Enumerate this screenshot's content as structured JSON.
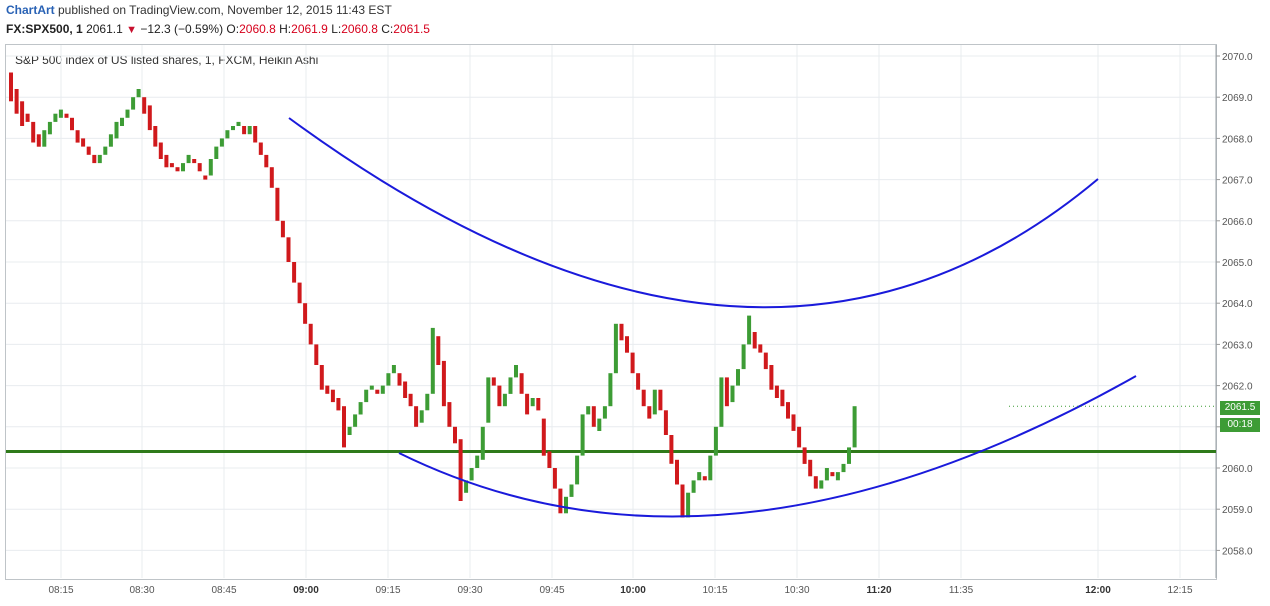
{
  "header": {
    "brand": "ChartArt",
    "published": " published on TradingView.com, November 12, 2015 11:43 EST",
    "symbol": "FX:SPX500, 1",
    "last": "2061.1",
    "change": "−12.3 (−0.59%)",
    "o_label": "O:",
    "o_value": "2060.8",
    "h_label": "H:",
    "h_value": "2061.9",
    "l_label": "L:",
    "l_value": "2060.8",
    "c_label": "C:",
    "c_value": "2061.5"
  },
  "legend_title": "S&P 500 index of US listed shares, 1, FXCM, Heikin Ashi",
  "price_badge": "2061.5",
  "time_badge": "00:18",
  "colors": {
    "up": "#3d9c35",
    "down": "#d0191c",
    "arc": "#1a1adb",
    "support": "#2f7a1a",
    "grid": "#e8ecef"
  },
  "chart_data": {
    "type": "candlestick",
    "style": "Heikin Ashi",
    "y_ticks": [
      "2070.0",
      "2069.0",
      "2068.0",
      "2067.0",
      "2066.0",
      "2065.0",
      "2064.0",
      "2063.0",
      "2062.0",
      "2061.0",
      "2060.0",
      "2059.0",
      "2058.0"
    ],
    "y_range": [
      2057.6,
      2070.3
    ],
    "x_ticks": [
      {
        "label": "08:15",
        "bold": false
      },
      {
        "label": "08:30",
        "bold": false
      },
      {
        "label": "08:45",
        "bold": false
      },
      {
        "label": "09:00",
        "bold": true
      },
      {
        "label": "09:15",
        "bold": false
      },
      {
        "label": "09:30",
        "bold": false
      },
      {
        "label": "09:45",
        "bold": false
      },
      {
        "label": "10:00",
        "bold": true
      },
      {
        "label": "10:15",
        "bold": false
      },
      {
        "label": "10:30",
        "bold": false
      },
      {
        "label": "11:20",
        "bold": true
      },
      {
        "label": "11:35",
        "bold": false
      },
      {
        "label": "12:00",
        "bold": true
      },
      {
        "label": "12:15",
        "bold": false
      }
    ],
    "support_level": 2060.4,
    "candles": [
      [
        2069.6,
        2068.9
      ],
      [
        2069.2,
        2068.6
      ],
      [
        2068.9,
        2068.3
      ],
      [
        2068.6,
        2068.4
      ],
      [
        2068.4,
        2067.9
      ],
      [
        2068.1,
        2067.8
      ],
      [
        2067.8,
        2068.2
      ],
      [
        2068.1,
        2068.4
      ],
      [
        2068.4,
        2068.6
      ],
      [
        2068.5,
        2068.7
      ],
      [
        2068.6,
        2068.5
      ],
      [
        2068.5,
        2068.2
      ],
      [
        2068.2,
        2067.9
      ],
      [
        2068.0,
        2067.8
      ],
      [
        2067.8,
        2067.6
      ],
      [
        2067.6,
        2067.4
      ],
      [
        2067.4,
        2067.6
      ],
      [
        2067.6,
        2067.8
      ],
      [
        2067.8,
        2068.1
      ],
      [
        2068.0,
        2068.4
      ],
      [
        2068.3,
        2068.5
      ],
      [
        2068.5,
        2068.7
      ],
      [
        2068.7,
        2069.0
      ],
      [
        2069.0,
        2069.2
      ],
      [
        2069.0,
        2068.6
      ],
      [
        2068.8,
        2068.2
      ],
      [
        2068.3,
        2067.8
      ],
      [
        2067.9,
        2067.5
      ],
      [
        2067.6,
        2067.3
      ],
      [
        2067.4,
        2067.3
      ],
      [
        2067.3,
        2067.2
      ],
      [
        2067.2,
        2067.4
      ],
      [
        2067.4,
        2067.6
      ],
      [
        2067.5,
        2067.4
      ],
      [
        2067.4,
        2067.2
      ],
      [
        2067.1,
        2067.0
      ],
      [
        2067.1,
        2067.5
      ],
      [
        2067.5,
        2067.8
      ],
      [
        2067.8,
        2068.0
      ],
      [
        2068.0,
        2068.2
      ],
      [
        2068.2,
        2068.3
      ],
      [
        2068.3,
        2068.4
      ],
      [
        2068.3,
        2068.1
      ],
      [
        2068.1,
        2068.3
      ],
      [
        2068.3,
        2067.9
      ],
      [
        2067.9,
        2067.6
      ],
      [
        2067.6,
        2067.3
      ],
      [
        2067.3,
        2066.8
      ],
      [
        2066.8,
        2066.0
      ],
      [
        2066.0,
        2065.6
      ],
      [
        2065.6,
        2065.0
      ],
      [
        2065.0,
        2064.5
      ],
      [
        2064.5,
        2064.0
      ],
      [
        2064.0,
        2063.5
      ],
      [
        2063.5,
        2063.0
      ],
      [
        2063.0,
        2062.5
      ],
      [
        2062.5,
        2061.9
      ],
      [
        2062.0,
        2061.8
      ],
      [
        2061.9,
        2061.6
      ],
      [
        2061.7,
        2061.4
      ],
      [
        2061.5,
        2060.5
      ],
      [
        2060.8,
        2061.0
      ],
      [
        2061.0,
        2061.3
      ],
      [
        2061.3,
        2061.6
      ],
      [
        2061.6,
        2061.9
      ],
      [
        2061.9,
        2062.0
      ],
      [
        2061.9,
        2061.8
      ],
      [
        2061.8,
        2062.0
      ],
      [
        2062.0,
        2062.3
      ],
      [
        2062.3,
        2062.5
      ],
      [
        2062.3,
        2062.0
      ],
      [
        2062.1,
        2061.7
      ],
      [
        2061.8,
        2061.5
      ],
      [
        2061.5,
        2061.0
      ],
      [
        2061.1,
        2061.4
      ],
      [
        2061.4,
        2061.8
      ],
      [
        2061.8,
        2063.4
      ],
      [
        2063.2,
        2062.5
      ],
      [
        2062.6,
        2061.5
      ],
      [
        2061.6,
        2061.0
      ],
      [
        2061.0,
        2060.6
      ],
      [
        2060.7,
        2059.2
      ],
      [
        2059.4,
        2059.7
      ],
      [
        2059.7,
        2060.0
      ],
      [
        2060.0,
        2060.3
      ],
      [
        2060.2,
        2061.0
      ],
      [
        2061.1,
        2062.2
      ],
      [
        2062.2,
        2062.0
      ],
      [
        2062.0,
        2061.5
      ],
      [
        2061.5,
        2061.8
      ],
      [
        2061.8,
        2062.2
      ],
      [
        2062.2,
        2062.5
      ],
      [
        2062.3,
        2061.8
      ],
      [
        2061.8,
        2061.3
      ],
      [
        2061.5,
        2061.7
      ],
      [
        2061.7,
        2061.4
      ],
      [
        2061.2,
        2060.3
      ],
      [
        2060.4,
        2060.0
      ],
      [
        2060.0,
        2059.5
      ],
      [
        2059.5,
        2058.9
      ],
      [
        2058.9,
        2059.3
      ],
      [
        2059.3,
        2059.6
      ],
      [
        2059.6,
        2060.3
      ],
      [
        2060.3,
        2061.3
      ],
      [
        2061.3,
        2061.5
      ],
      [
        2061.5,
        2061.0
      ],
      [
        2060.9,
        2061.2
      ],
      [
        2061.2,
        2061.5
      ],
      [
        2061.5,
        2062.3
      ],
      [
        2062.3,
        2063.5
      ],
      [
        2063.5,
        2063.1
      ],
      [
        2063.2,
        2062.8
      ],
      [
        2062.8,
        2062.3
      ],
      [
        2062.3,
        2061.9
      ],
      [
        2061.9,
        2061.5
      ],
      [
        2061.5,
        2061.2
      ],
      [
        2061.3,
        2061.9
      ],
      [
        2061.9,
        2061.4
      ],
      [
        2061.4,
        2060.8
      ],
      [
        2060.8,
        2060.1
      ],
      [
        2060.2,
        2059.6
      ],
      [
        2059.6,
        2058.8
      ],
      [
        2058.8,
        2059.4
      ],
      [
        2059.4,
        2059.7
      ],
      [
        2059.7,
        2059.9
      ],
      [
        2059.8,
        2059.7
      ],
      [
        2059.7,
        2060.3
      ],
      [
        2060.3,
        2061.0
      ],
      [
        2061.0,
        2062.2
      ],
      [
        2062.2,
        2061.5
      ],
      [
        2061.6,
        2062.0
      ],
      [
        2062.0,
        2062.4
      ],
      [
        2062.4,
        2063.0
      ],
      [
        2063.0,
        2063.7
      ],
      [
        2063.3,
        2062.9
      ],
      [
        2063.0,
        2062.8
      ],
      [
        2062.8,
        2062.4
      ],
      [
        2062.5,
        2061.9
      ],
      [
        2062.0,
        2061.7
      ],
      [
        2061.9,
        2061.5
      ],
      [
        2061.6,
        2061.2
      ],
      [
        2061.3,
        2060.9
      ],
      [
        2061.0,
        2060.5
      ],
      [
        2060.5,
        2060.1
      ],
      [
        2060.2,
        2059.8
      ],
      [
        2059.8,
        2059.5
      ],
      [
        2059.5,
        2059.7
      ],
      [
        2059.7,
        2060.0
      ],
      [
        2059.9,
        2059.8
      ],
      [
        2059.7,
        2059.9
      ],
      [
        2059.9,
        2060.1
      ],
      [
        2060.1,
        2060.5
      ],
      [
        2060.5,
        2061.5
      ]
    ]
  }
}
